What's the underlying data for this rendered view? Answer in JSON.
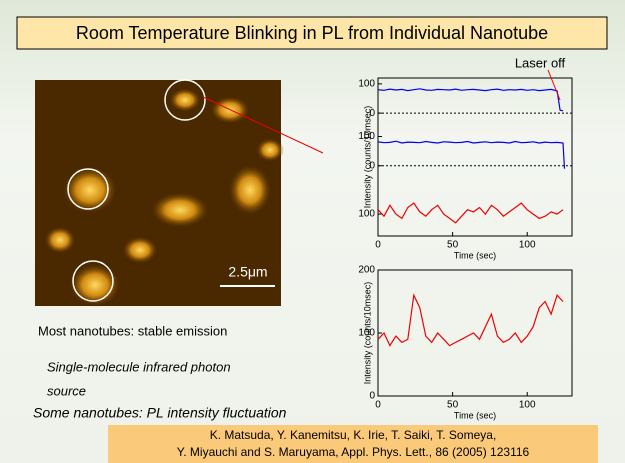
{
  "title": "Room Temperature Blinking in PL from Individual Nanotube",
  "image": {
    "scale_bar": "2.5μm"
  },
  "notes": [
    "Most nanotubes: stable emission",
    "Single-molecule infrared photon",
    "source",
    "Some nanotubes: PL intensity fluctuation"
  ],
  "reference": [
    "K. Matsuda, Y. Kanemitsu, K. Irie, T. Saiki, T. Someya,",
    "Y. Miyauchi and S. Maruyama, Appl. Phys. Lett., 86 (2005) 123116"
  ],
  "chart_data": [
    {
      "type": "line",
      "annotation": "Laser off",
      "xlabel": "Time (sec)",
      "ylabel": "Intensity (counts/10msec)",
      "xlim": [
        0,
        130
      ],
      "xticks": [
        0,
        50,
        100
      ],
      "panels": [
        {
          "ylim": [
            -60,
            120
          ],
          "yticks": [
            0,
            100
          ],
          "zero_line": true,
          "color": "#0000ee",
          "x": [
            0,
            4,
            8,
            12,
            16,
            20,
            24,
            28,
            32,
            36,
            40,
            44,
            48,
            52,
            56,
            60,
            64,
            68,
            72,
            76,
            80,
            84,
            88,
            92,
            96,
            100,
            104,
            108,
            112,
            116,
            120,
            122,
            124
          ],
          "values": [
            80,
            78,
            82,
            79,
            81,
            77,
            80,
            83,
            79,
            78,
            81,
            80,
            79,
            82,
            78,
            80,
            81,
            79,
            77,
            80,
            82,
            78,
            80,
            79,
            81,
            78,
            80,
            77,
            79,
            81,
            76,
            10,
            8
          ]
        },
        {
          "ylim": [
            -60,
            120
          ],
          "yticks": [
            0,
            100
          ],
          "zero_line": true,
          "color": "#0000ee",
          "x": [
            0,
            4,
            8,
            12,
            16,
            20,
            24,
            28,
            32,
            36,
            40,
            44,
            48,
            52,
            56,
            60,
            64,
            68,
            72,
            76,
            80,
            84,
            88,
            92,
            96,
            100,
            104,
            108,
            112,
            116,
            120,
            124,
            125
          ],
          "values": [
            82,
            79,
            80,
            84,
            78,
            81,
            80,
            79,
            83,
            80,
            78,
            82,
            81,
            79,
            80,
            83,
            78,
            80,
            82,
            79,
            81,
            80,
            78,
            83,
            79,
            80,
            82,
            78,
            81,
            79,
            80,
            78,
            -10
          ]
        },
        {
          "ylim": [
            0,
            240
          ],
          "yticks": [
            100
          ],
          "zero_line": false,
          "color": "#ee0000",
          "x": [
            0,
            4,
            8,
            12,
            16,
            20,
            24,
            28,
            32,
            36,
            40,
            44,
            48,
            52,
            56,
            60,
            64,
            68,
            72,
            76,
            80,
            84,
            88,
            92,
            96,
            100,
            104,
            108,
            112,
            116,
            120,
            124
          ],
          "values": [
            120,
            90,
            140,
            100,
            80,
            130,
            150,
            110,
            90,
            120,
            140,
            100,
            80,
            60,
            90,
            120,
            110,
            130,
            100,
            140,
            120,
            90,
            110,
            130,
            150,
            120,
            100,
            80,
            90,
            110,
            100,
            120
          ]
        }
      ]
    },
    {
      "type": "line",
      "xlabel": "Time (sec)",
      "ylabel": "Intensity (counts/10msec)",
      "xlim": [
        0,
        130
      ],
      "xticks": [
        0,
        50,
        100
      ],
      "ylim": [
        0,
        200
      ],
      "yticks": [
        0,
        100,
        200
      ],
      "color": "#ee0000",
      "x": [
        0,
        4,
        8,
        12,
        16,
        20,
        24,
        28,
        32,
        36,
        40,
        44,
        48,
        52,
        56,
        60,
        64,
        68,
        72,
        76,
        80,
        84,
        88,
        92,
        96,
        100,
        104,
        108,
        112,
        116,
        120,
        124
      ],
      "values": [
        90,
        100,
        80,
        95,
        85,
        90,
        160,
        140,
        95,
        85,
        100,
        90,
        80,
        85,
        90,
        95,
        100,
        90,
        110,
        130,
        95,
        85,
        90,
        100,
        85,
        95,
        110,
        140,
        150,
        130,
        160,
        150
      ]
    }
  ]
}
